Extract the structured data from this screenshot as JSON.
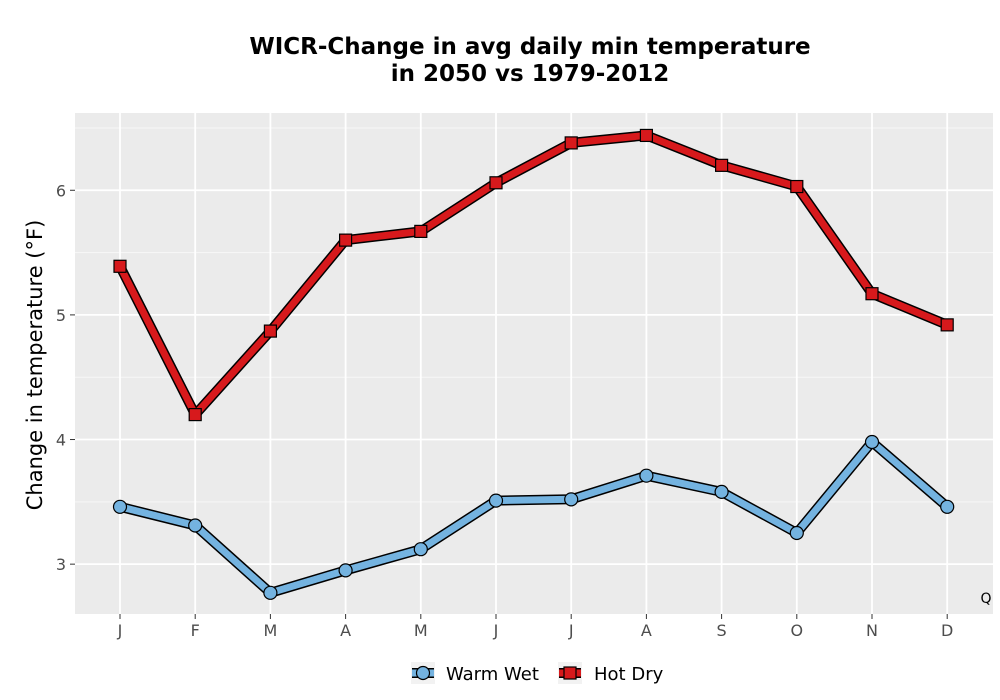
{
  "chart_data": {
    "type": "line",
    "title_line1": "WICR-Change in avg daily min temperature",
    "title_line2": "in 2050 vs 1979-2012",
    "xlabel": "",
    "ylabel": "Change in temperature (°F)",
    "categories": [
      "J",
      "F",
      "M",
      "A",
      "M",
      "J",
      "J",
      "A",
      "S",
      "O",
      "N",
      "D"
    ],
    "yticks": [
      3,
      4,
      5,
      6
    ],
    "ylim": [
      2.6,
      6.62
    ],
    "grid": true,
    "legend_position": "bottom",
    "corner_note": "Q",
    "series": [
      {
        "name": "Warm Wet",
        "marker": "circle",
        "color": "#74b3e0",
        "values": [
          3.46,
          3.31,
          2.77,
          2.95,
          3.12,
          3.51,
          3.52,
          3.71,
          3.58,
          3.25,
          3.98,
          3.46
        ]
      },
      {
        "name": "Hot Dry",
        "marker": "square",
        "color": "#d7191c",
        "values": [
          5.39,
          4.2,
          4.87,
          5.6,
          5.67,
          6.06,
          6.38,
          6.44,
          6.2,
          6.03,
          5.17,
          4.92
        ]
      }
    ]
  }
}
